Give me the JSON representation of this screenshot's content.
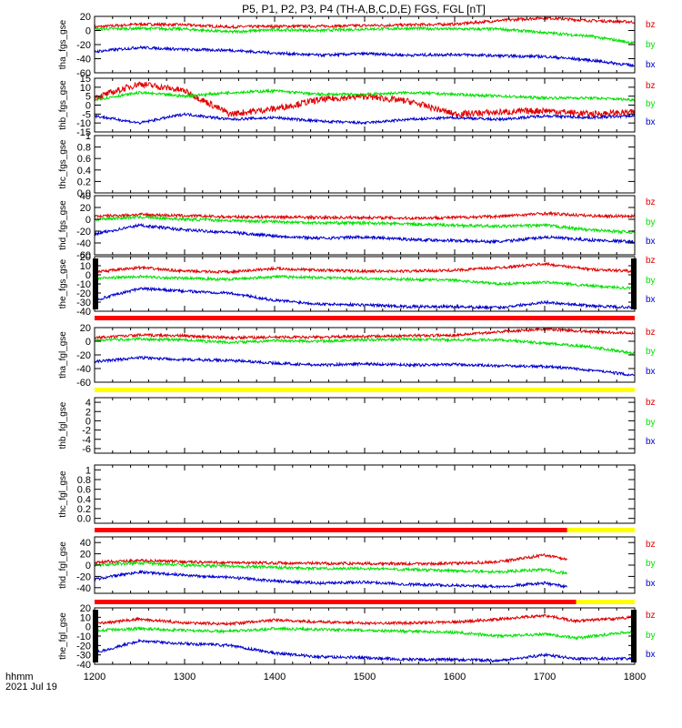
{
  "title": "P5, P1, P2, P3, P4 (TH-A,B,C,D,E) FGS, FGL [nT]",
  "footer": {
    "units_label": "hhmm",
    "date_label": "2021 Jul 19"
  },
  "colors": {
    "bz": "#e00000",
    "by": "#00e000",
    "bx": "#0000cc",
    "bar_red": "#ff0000",
    "bar_yellow": "#ffff00",
    "bar_black": "#000000"
  },
  "chart_data": [
    {
      "type": "line",
      "ylabel": "tha_fgs_gse",
      "ylim": [
        -60,
        20
      ],
      "yticks": [
        20,
        0,
        -20,
        -40,
        -60
      ],
      "xlim": [
        1200,
        1800
      ],
      "legend": [
        "bz",
        "by",
        "bx"
      ],
      "x": [
        1200,
        1250,
        1300,
        1350,
        1400,
        1450,
        1500,
        1550,
        1600,
        1650,
        1700,
        1750,
        1800
      ],
      "series": [
        {
          "name": "bz",
          "values": [
            5,
            9,
            8,
            5,
            6,
            6,
            7,
            8,
            9,
            14,
            18,
            14,
            12
          ]
        },
        {
          "name": "by",
          "values": [
            2,
            3,
            2,
            -2,
            1,
            0,
            2,
            3,
            2,
            2,
            -3,
            -8,
            -18
          ]
        },
        {
          "name": "bx",
          "values": [
            -30,
            -24,
            -27,
            -28,
            -32,
            -35,
            -33,
            -35,
            -34,
            -36,
            -37,
            -42,
            -50
          ]
        }
      ]
    },
    {
      "type": "line",
      "ylabel": "thb_fgs_gse",
      "ylim": [
        -15,
        15
      ],
      "yticks": [
        15,
        10,
        5,
        0,
        -5,
        -10,
        -15
      ],
      "xlim": [
        1200,
        1800
      ],
      "legend": [
        "bz",
        "by",
        "bx"
      ],
      "x": [
        1200,
        1250,
        1300,
        1350,
        1400,
        1450,
        1500,
        1550,
        1600,
        1650,
        1700,
        1750,
        1800
      ],
      "series": [
        {
          "name": "bz",
          "values": [
            4,
            12,
            8,
            -5,
            -2,
            3,
            5,
            2,
            -5,
            -4,
            -3,
            -5,
            -4
          ]
        },
        {
          "name": "by",
          "values": [
            3,
            7,
            5,
            7,
            8,
            6,
            6,
            7,
            6,
            5,
            4,
            4,
            3
          ]
        },
        {
          "name": "bx",
          "values": [
            -6,
            -10,
            -5,
            -8,
            -7,
            -9,
            -10,
            -8,
            -7,
            -8,
            -6,
            -7,
            -6
          ]
        }
      ]
    },
    {
      "type": "line",
      "ylabel": "thc_fgs_gse",
      "ylim": [
        0,
        1
      ],
      "yticks": [
        1.0,
        0.8,
        0.6,
        0.4,
        0.2,
        0.0
      ],
      "xlim": [
        1200,
        1800
      ],
      "legend": [],
      "series": []
    },
    {
      "type": "line",
      "ylabel": "thd_fgs_gse",
      "ylim": [
        -60,
        40
      ],
      "yticks": [
        40,
        20,
        0,
        -20,
        -40,
        -60
      ],
      "xlim": [
        1200,
        1800
      ],
      "legend": [
        "bz",
        "by",
        "bx"
      ],
      "x": [
        1200,
        1250,
        1300,
        1350,
        1400,
        1450,
        1500,
        1550,
        1600,
        1650,
        1700,
        1750,
        1800
      ],
      "series": [
        {
          "name": "bz",
          "values": [
            5,
            8,
            6,
            4,
            4,
            3,
            3,
            2,
            3,
            5,
            10,
            6,
            5
          ]
        },
        {
          "name": "by",
          "values": [
            0,
            4,
            0,
            -2,
            -4,
            -6,
            -6,
            -8,
            -10,
            -12,
            -10,
            -18,
            -22
          ]
        },
        {
          "name": "bx",
          "values": [
            -25,
            -10,
            -18,
            -22,
            -28,
            -32,
            -30,
            -34,
            -36,
            -38,
            -30,
            -35,
            -38
          ]
        }
      ]
    },
    {
      "type": "line",
      "ylabel": "the_fgs_gse",
      "ylim": [
        -40,
        20
      ],
      "yticks": [
        20,
        10,
        0,
        -10,
        -20,
        -30,
        -40
      ],
      "xlim": [
        1200,
        1800
      ],
      "legend": [
        "bz",
        "by",
        "bx"
      ],
      "x": [
        1200,
        1250,
        1300,
        1350,
        1400,
        1450,
        1500,
        1550,
        1600,
        1650,
        1700,
        1750,
        1800
      ],
      "series": [
        {
          "name": "bz",
          "values": [
            3,
            8,
            4,
            3,
            7,
            5,
            4,
            4,
            5,
            8,
            12,
            6,
            4
          ]
        },
        {
          "name": "by",
          "values": [
            -4,
            -2,
            -4,
            -5,
            -2,
            -3,
            -4,
            -5,
            -6,
            -10,
            -8,
            -12,
            -15
          ]
        },
        {
          "name": "bx",
          "values": [
            -28,
            -15,
            -18,
            -20,
            -28,
            -32,
            -33,
            -35,
            -35,
            -36,
            -30,
            -34,
            -36
          ]
        }
      ]
    },
    {
      "type": "line",
      "ylabel": "tha_fgl_gse",
      "ylim": [
        -60,
        20
      ],
      "yticks": [
        20,
        0,
        -20,
        -40,
        -60
      ],
      "xlim": [
        1200,
        1800
      ],
      "legend": [
        "bz",
        "by",
        "bx"
      ],
      "x": [
        1200,
        1250,
        1300,
        1350,
        1400,
        1450,
        1500,
        1550,
        1600,
        1650,
        1700,
        1750,
        1800
      ],
      "series": [
        {
          "name": "bz",
          "values": [
            5,
            9,
            8,
            5,
            6,
            6,
            7,
            8,
            9,
            14,
            18,
            14,
            12
          ]
        },
        {
          "name": "by",
          "values": [
            2,
            3,
            2,
            -2,
            1,
            0,
            2,
            3,
            2,
            2,
            -3,
            -8,
            -18
          ]
        },
        {
          "name": "bx",
          "values": [
            -30,
            -24,
            -27,
            -28,
            -32,
            -35,
            -33,
            -35,
            -34,
            -36,
            -37,
            -42,
            -50
          ]
        }
      ]
    },
    {
      "type": "line",
      "ylabel": "thb_fgl_gse",
      "ylim": [
        -7,
        5
      ],
      "yticks": [
        4,
        2,
        0,
        -2,
        -4,
        -6
      ],
      "xlim": [
        1200,
        1800
      ],
      "legend": [
        "bz",
        "by",
        "bx"
      ],
      "series": []
    },
    {
      "type": "line",
      "ylabel": "thc_fgl_gse",
      "ylim": [
        -0.1,
        1.1
      ],
      "yticks": [
        1.0,
        0.8,
        0.6,
        0.4,
        0.2,
        0.0
      ],
      "xlim": [
        1200,
        1800
      ],
      "legend": [],
      "series": []
    },
    {
      "type": "line",
      "ylabel": "thd_fgl_gse",
      "ylim": [
        -50,
        50
      ],
      "yticks": [
        40,
        20,
        0,
        -20,
        -40
      ],
      "xlim": [
        1200,
        1800
      ],
      "legend": [
        "bz",
        "by",
        "bx"
      ],
      "x": [
        1200,
        1250,
        1300,
        1350,
        1400,
        1450,
        1500,
        1550,
        1600,
        1650,
        1700,
        1725
      ],
      "series": [
        {
          "name": "bz",
          "values": [
            5,
            8,
            6,
            4,
            4,
            3,
            3,
            2,
            3,
            6,
            18,
            10
          ]
        },
        {
          "name": "by",
          "values": [
            0,
            4,
            0,
            -2,
            -4,
            -6,
            -6,
            -8,
            -10,
            -12,
            -8,
            -15
          ]
        },
        {
          "name": "bx",
          "values": [
            -25,
            -12,
            -18,
            -22,
            -28,
            -32,
            -30,
            -34,
            -36,
            -38,
            -32,
            -38
          ]
        }
      ]
    },
    {
      "type": "line",
      "ylabel": "the_fgl_gse",
      "ylim": [
        -40,
        20
      ],
      "yticks": [
        20,
        10,
        0,
        -10,
        -20,
        -30,
        -40
      ],
      "xlim": [
        1200,
        1800
      ],
      "legend": [
        "bz",
        "by",
        "bx"
      ],
      "x": [
        1200,
        1250,
        1300,
        1350,
        1400,
        1450,
        1500,
        1550,
        1600,
        1650,
        1700,
        1735,
        1800
      ],
      "series": [
        {
          "name": "bz",
          "values": [
            3,
            8,
            4,
            3,
            7,
            5,
            4,
            4,
            5,
            8,
            12,
            6,
            10
          ]
        },
        {
          "name": "by",
          "values": [
            -4,
            -2,
            -4,
            -5,
            -2,
            -3,
            -4,
            -5,
            -6,
            -10,
            -8,
            -12,
            -5
          ]
        },
        {
          "name": "bx",
          "values": [
            -28,
            -15,
            -18,
            -20,
            -28,
            -32,
            -33,
            -35,
            -35,
            -36,
            -30,
            -34,
            -34
          ]
        }
      ]
    }
  ],
  "status_bars": [
    {
      "after_panel": 4,
      "segments": [
        {
          "color": "red",
          "x_start": 1200,
          "x_end": 1800
        }
      ]
    },
    {
      "after_panel": 5,
      "segments": [
        {
          "color": "yellow",
          "x_start": 1200,
          "x_end": 1800
        }
      ]
    },
    {
      "after_panel": 7,
      "segments": [
        {
          "color": "red",
          "x_start": 1200,
          "x_end": 1725
        },
        {
          "color": "yellow",
          "x_start": 1725,
          "x_end": 1800
        }
      ]
    },
    {
      "after_panel": 8,
      "segments": [
        {
          "color": "red",
          "x_start": 1200,
          "x_end": 1735
        },
        {
          "color": "yellow",
          "x_start": 1735,
          "x_end": 1800
        }
      ]
    }
  ],
  "x_axis": {
    "ticks": [
      1200,
      1300,
      1400,
      1500,
      1600,
      1700,
      1800
    ],
    "tick_labels": [
      "1200",
      "1300",
      "1400",
      "1500",
      "1600",
      "1700",
      "1800"
    ]
  }
}
